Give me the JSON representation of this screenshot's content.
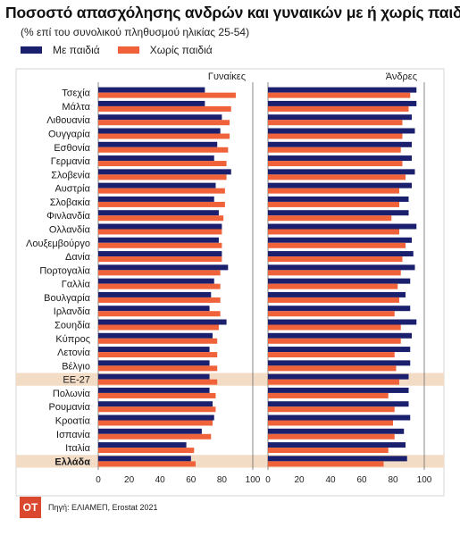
{
  "title": "Ποσοστό απασχόλησης ανδρών και γυναικών με ή χωρίς παιδιά",
  "subtitle": "(% επί του συνολικού πληθυσμού ηλικίας 25-54)",
  "legend": [
    {
      "label": "Με παιδιά",
      "color": "#1a1f6e"
    },
    {
      "label": "Χωρίς παιδιά",
      "color": "#f0633a"
    }
  ],
  "source": "Πηγή: ΕΛΙΑΜΕΠ, Erostat 2021",
  "logo": "OT",
  "colors": {
    "with_children": "#1a1f6e",
    "without_children": "#f0633a",
    "highlight_band": "#f3dcc6",
    "axis_line": "#555555"
  },
  "chart_data": {
    "type": "bar",
    "orientation": "horizontal",
    "title": "Ποσοστό απασχόλησης ανδρών και γυναικών με ή χωρίς παιδιά",
    "subtitle": "(% επί του συνολικού πληθυσμού ηλικίας 25-54)",
    "categories": [
      "Τσεχία",
      "Μάλτα",
      "Λιθουανία",
      "Ουγγαρία",
      "Εσθονία",
      "Γερμανία",
      "Σλοβενία",
      "Αυστρία",
      "Σλοβακία",
      "Φινλανδία",
      "Ολλανδία",
      "Λουξεμβούργο",
      "Δανία",
      "Πορτογαλία",
      "Γαλλία",
      "Βουλγαρία",
      "Ιρλανδία",
      "Σουηδία",
      "Κύπρος",
      "Λετονία",
      "Βέλγιο",
      "ΕΕ-27",
      "Πολωνία",
      "Ρουμανία",
      "Κροατία",
      "Ισπανία",
      "Ιταλία",
      "Ελλάδα"
    ],
    "highlighted": [
      "ΕΕ-27",
      "Ελλάδα"
    ],
    "xlim": [
      0,
      100
    ],
    "xticks": [
      0,
      20,
      40,
      60,
      80,
      100
    ],
    "legend_position": "top-left",
    "panels": [
      {
        "name": "Γυναίκες",
        "series": [
          {
            "name": "Με παιδιά",
            "values": [
              69,
              69,
              80,
              79,
              77,
              75,
              86,
              76,
              75,
              78,
              80,
              78,
              80,
              84,
              75,
              73,
              72,
              83,
              74,
              72,
              72,
              72,
              72,
              74,
              75,
              67,
              57,
              60
            ]
          },
          {
            "name": "Χωρίς παιδιά",
            "values": [
              89,
              86,
              85,
              85,
              84,
              83,
              83,
              82,
              82,
              81,
              80,
              80,
              80,
              79,
              79,
              79,
              79,
              78,
              77,
              77,
              77,
              77,
              76,
              76,
              74,
              73,
              62,
              63
            ]
          }
        ]
      },
      {
        "name": "Άνδρες",
        "series": [
          {
            "name": "Με παιδιά",
            "values": [
              95,
              95,
              92,
              94,
              92,
              92,
              94,
              92,
              90,
              90,
              95,
              92,
              93,
              94,
              91,
              88,
              91,
              95,
              92,
              91,
              91,
              90,
              90,
              90,
              91,
              87,
              88,
              89
            ]
          },
          {
            "name": "Χωρίς παιδιά",
            "values": [
              91,
              90,
              86,
              86,
              85,
              86,
              88,
              84,
              84,
              79,
              84,
              88,
              86,
              85,
              83,
              84,
              81,
              85,
              85,
              81,
              82,
              84,
              77,
              81,
              80,
              81,
              77,
              74
            ]
          }
        ]
      }
    ]
  }
}
